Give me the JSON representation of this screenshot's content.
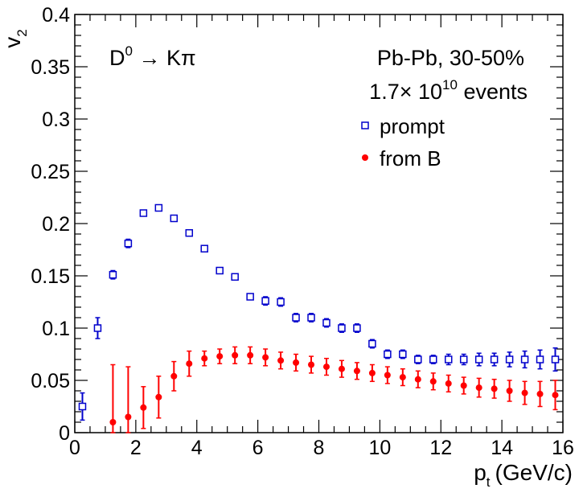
{
  "chart_data": {
    "type": "scatter",
    "title": "",
    "xlabel": "p",
    "xlabel_sub": "t",
    "xlabel_unit": "(GeV/c)",
    "ylabel": "v",
    "ylabel_sub": "2",
    "xlim": [
      0,
      16
    ],
    "ylim": [
      0,
      0.4
    ],
    "x_ticks": [
      0,
      2,
      4,
      6,
      8,
      10,
      12,
      14,
      16
    ],
    "y_ticks": [
      0,
      0.05,
      0.1,
      0.15,
      0.2,
      0.25,
      0.3,
      0.35,
      0.4
    ],
    "x_tick_labels": [
      "0",
      "2",
      "4",
      "6",
      "8",
      "10",
      "12",
      "14",
      "16"
    ],
    "y_tick_labels": [
      "0",
      "0.05",
      "0.1",
      "0.15",
      "0.2",
      "0.25",
      "0.3",
      "0.35",
      "0.4"
    ],
    "grid": false,
    "legend_position": "top-right",
    "annotations": {
      "decay_main": "D",
      "decay_sup": "0",
      "decay_arrow": " → Kπ",
      "system": "Pb-Pb, 30-50%",
      "events_prefix": "1.7× 10",
      "events_exp": "10",
      "events_suffix": " events"
    },
    "series": [
      {
        "name": "prompt",
        "marker": "open-square",
        "color": "#0000cc",
        "x": [
          0.25,
          0.75,
          1.25,
          1.75,
          2.25,
          2.75,
          3.25,
          3.75,
          4.25,
          4.75,
          5.25,
          5.75,
          6.25,
          6.75,
          7.25,
          7.75,
          8.25,
          8.75,
          9.25,
          9.75,
          10.25,
          10.75,
          11.25,
          11.75,
          12.25,
          12.75,
          13.25,
          13.75,
          14.25,
          14.75,
          15.25,
          15.75
        ],
        "y": [
          0.025,
          0.1,
          0.151,
          0.181,
          0.21,
          0.215,
          0.205,
          0.191,
          0.176,
          0.155,
          0.149,
          0.13,
          0.126,
          0.125,
          0.11,
          0.11,
          0.105,
          0.1,
          0.1,
          0.085,
          0.075,
          0.075,
          0.07,
          0.07,
          0.07,
          0.07,
          0.07,
          0.07,
          0.07,
          0.07,
          0.07,
          0.07
        ],
        "err": [
          0.013,
          0.01,
          0.004,
          0.004,
          0.002,
          0.002,
          0.002,
          0.002,
          0.002,
          0.002,
          0.002,
          0.002,
          0.004,
          0.004,
          0.004,
          0.004,
          0.004,
          0.004,
          0.004,
          0.004,
          0.004,
          0.004,
          0.004,
          0.004,
          0.005,
          0.005,
          0.006,
          0.006,
          0.007,
          0.008,
          0.009,
          0.011
        ]
      },
      {
        "name": "from B",
        "marker": "filled-circle",
        "color": "#ff0000",
        "x": [
          1.25,
          1.75,
          2.25,
          2.75,
          3.25,
          3.75,
          4.25,
          4.75,
          5.25,
          5.75,
          6.25,
          6.75,
          7.25,
          7.75,
          8.25,
          8.75,
          9.25,
          9.75,
          10.25,
          10.75,
          11.25,
          11.75,
          12.25,
          12.75,
          13.25,
          13.75,
          14.25,
          14.75,
          15.25,
          15.75
        ],
        "y": [
          0.01,
          0.015,
          0.024,
          0.034,
          0.054,
          0.066,
          0.071,
          0.073,
          0.074,
          0.074,
          0.072,
          0.069,
          0.067,
          0.065,
          0.063,
          0.061,
          0.059,
          0.057,
          0.055,
          0.053,
          0.051,
          0.049,
          0.047,
          0.045,
          0.043,
          0.042,
          0.04,
          0.038,
          0.037,
          0.036
        ],
        "err": [
          0.055,
          0.048,
          0.02,
          0.02,
          0.014,
          0.012,
          0.007,
          0.007,
          0.008,
          0.008,
          0.008,
          0.008,
          0.008,
          0.008,
          0.008,
          0.008,
          0.008,
          0.008,
          0.008,
          0.008,
          0.008,
          0.008,
          0.008,
          0.008,
          0.009,
          0.009,
          0.01,
          0.011,
          0.012,
          0.014
        ]
      }
    ]
  }
}
